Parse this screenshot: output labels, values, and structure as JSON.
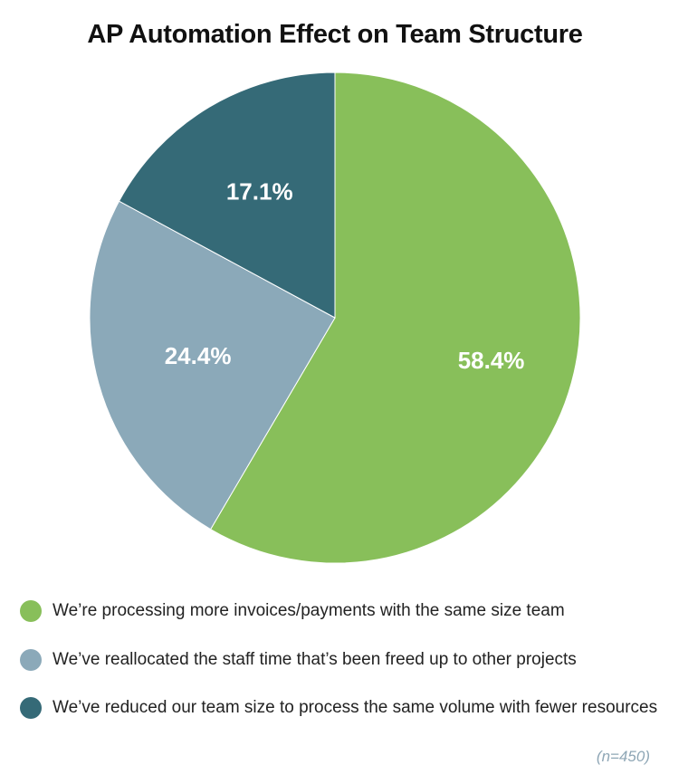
{
  "chart_data": {
    "type": "pie",
    "title": "AP Automation Effect on Team Structure",
    "labels": [
      "We’re processing more invoices/payments with the same size team",
      "We’ve reallocated the staff time that’s been freed up to other projects",
      "We’ve reduced our team size to process the same volume with fewer resources"
    ],
    "values": [
      58.4,
      24.4,
      17.1
    ],
    "value_labels": [
      "58.4%",
      "24.4%",
      "17.1%"
    ],
    "colors": [
      "#88bf5a",
      "#8ba9b9",
      "#356a77"
    ],
    "start": "12 o'clock, clockwise",
    "legend_position": "bottom",
    "note": "(n=450)"
  }
}
